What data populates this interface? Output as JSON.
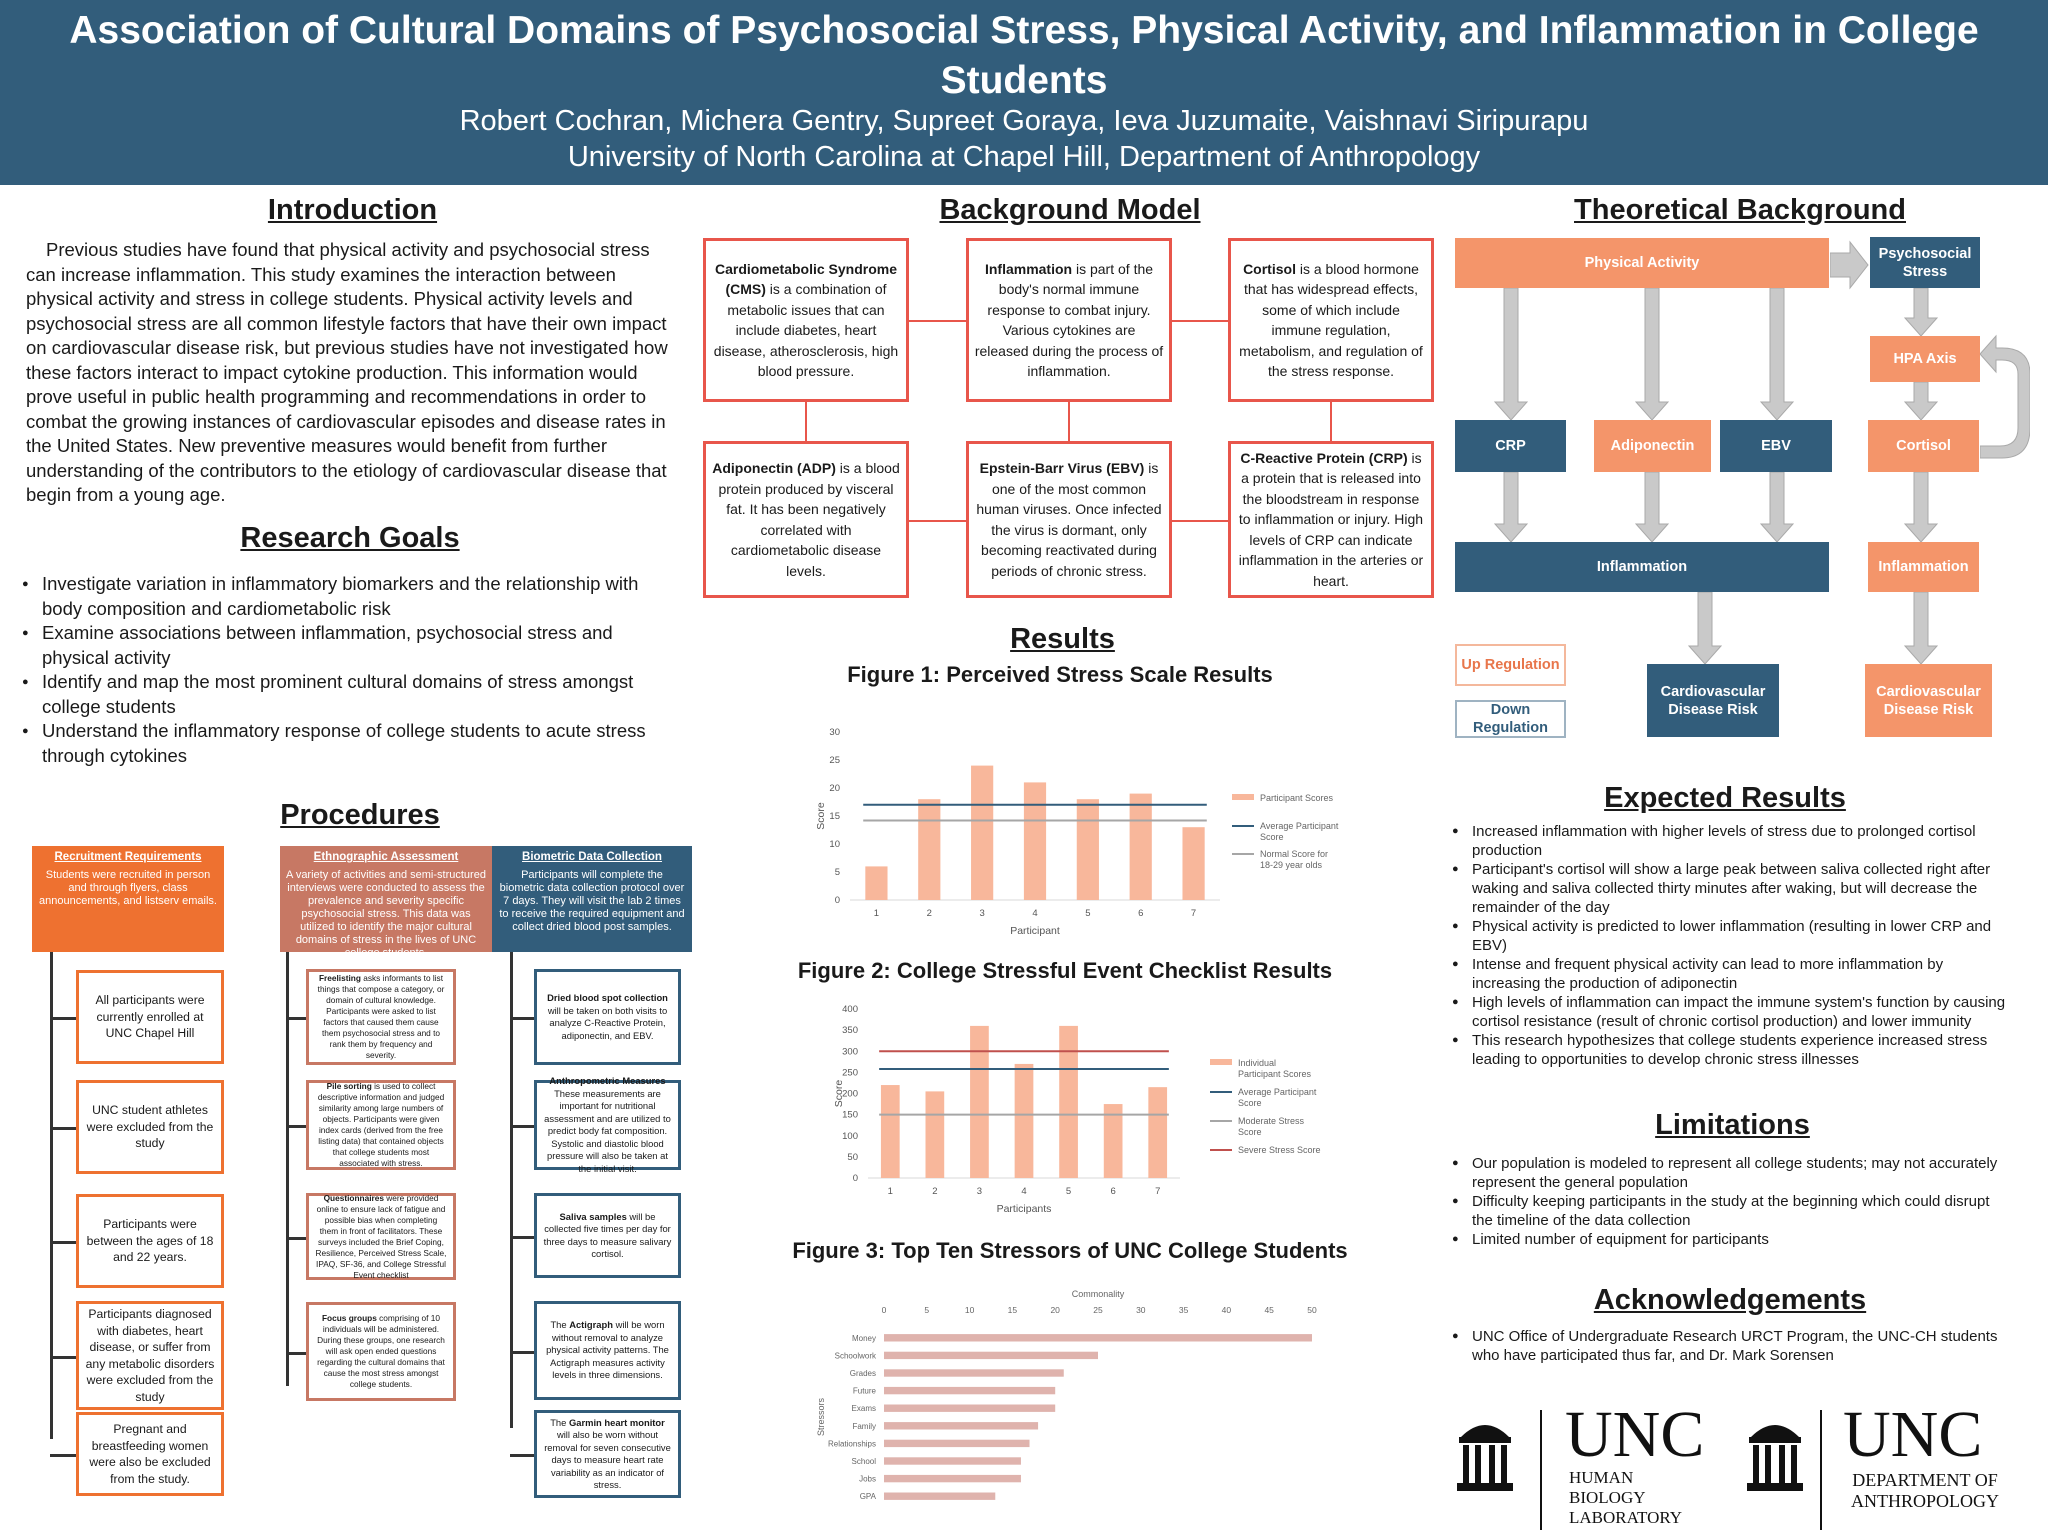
{
  "header": {
    "title": "Association of Cultural Domains of Psychosocial Stress, Physical Activity, and Inflammation in College Students",
    "authors": "Robert Cochran, Michera Gentry, Supreet Goraya, Ieva Juzumaite, Vaishnavi Siripurapu",
    "affiliation": "University of North Carolina at Chapel Hill, Department of Anthropology"
  },
  "introduction": {
    "heading": "Introduction",
    "text": "Previous studies have found that  physical activity and psychosocial stress can increase inflammation. This study examines the interaction between physical activity and stress in college students.  Physical activity levels and psychosocial stress are all common lifestyle factors that have their own impact on cardiovascular disease risk, but previous studies have not investigated how these factors interact to impact cytokine production. This information would prove useful in public health programming and recommendations in order to combat the growing instances of cardiovascular episodes and disease rates in the United States. New preventive measures would benefit from further understanding of the contributors to the etiology of cardiovascular disease that begin from a young age."
  },
  "goals": {
    "heading": "Research Goals",
    "items": [
      "Investigate variation in inflammatory biomarkers and the relationship with body composition and cardiometabolic risk",
      "Examine associations between inflammation, psychosocial stress and physical activity",
      "Identify and map the most prominent cultural domains of stress amongst college students",
      "Understand the inflammatory response of college students to acute stress through cytokines"
    ]
  },
  "procedures": {
    "heading": "Procedures",
    "col1": {
      "title": "Recruitment Requirements",
      "desc": "Students were recruited in person and through flyers, class announcements, and listserv emails.",
      "boxes": [
        "All participants were currently enrolled at UNC Chapel Hill",
        "UNC student athletes were excluded from the study",
        "Participants were between the ages of 18 and 22 years.",
        "Participants diagnosed with diabetes, heart disease, or suffer from any metabolic disorders were excluded from the study",
        "Pregnant and breastfeeding women were also be excluded from the study."
      ]
    },
    "col2": {
      "title": "Ethnographic Assessment",
      "desc": "A variety of activities and semi-structured interviews were conducted to assess the prevalence and severity specific psychosocial stress. This data was utilized to identify the major cultural domains of stress in the lives of UNC college students.",
      "boxes": [
        {
          "b": "Freelisting",
          "t": " asks informants to list things that compose a category, or domain of cultural knowledge. Participants were asked to list factors that caused them cause them psychosocial stress and to rank them by frequency and severity."
        },
        {
          "b": "Pile sorting",
          "t": " is used to collect descriptive information and judged similarity among large numbers of objects. Participants were given index cards (derived from the free listing data) that contained objects that college students most associated with stress."
        },
        {
          "b": "Questionnaires",
          "t": " were provided online to ensure lack of fatigue and possible bias when completing them in front of facilitators. These surveys included the Brief Coping, Resilience, Perceived Stress Scale, IPAQ, SF-36, and College Stressful Event checklist"
        },
        {
          "b": "Focus groups",
          "t": " comprising of 10 individuals will be administered. During these groups, one research will ask open ended questions regarding the cultural domains that cause the most stress amongst college students."
        }
      ]
    },
    "col3": {
      "title": "Biometric Data Collection",
      "desc": "Participants will complete the biometric data collection protocol over 7 days. They will visit the lab 2 times to receive the required equipment and collect dried blood post samples.",
      "boxes": [
        {
          "b": "Dried blood spot collection",
          "t": " will be taken on both visits to analyze C-Reactive Protein, adiponectin, and EBV."
        },
        {
          "b": "Anthropometric Measures",
          "t": " These measurements are important for nutritional assessment and are utilized to predict body fat composition. Systolic and diastolic blood pressure will also be taken at the initial visit."
        },
        {
          "b": "Saliva samples",
          "t": " will be collected five times per day for three days to measure salivary cortisol."
        },
        {
          "pre": "The ",
          "b": "Actigraph",
          "t": " will be worn without removal to analyze physical activity patterns. The Actigraph measures activity levels in three dimensions."
        },
        {
          "pre": "The ",
          "b": "Garmin heart monitor",
          "t": " will also be worn without removal for seven consecutive days to measure heart rate variability as an indicator of stress."
        }
      ]
    }
  },
  "background_model": {
    "heading": "Background Model",
    "boxes": [
      {
        "b": "Cardiometabolic Syndrome (CMS)",
        "t": " is a combination of metabolic issues that can include diabetes, heart disease, atherosclerosis, high blood pressure."
      },
      {
        "b": "Inflammation",
        "t": " is part of the body's normal immune response to combat injury. Various cytokines are released during the process of inflammation."
      },
      {
        "b": "Cortisol",
        "t": " is a blood hormone that has widespread effects, some of which include immune regulation, metabolism, and regulation of the stress response."
      },
      {
        "b": "Adiponectin (ADP)",
        "t": " is a blood protein produced by visceral fat. It has been negatively correlated with cardiometabolic disease levels."
      },
      {
        "b": "Epstein-Barr Virus (EBV)",
        "t": " is one of the most common human viruses. Once infected the virus is dormant, only becoming reactivated during periods of chronic stress."
      },
      {
        "b": "C-Reactive Protein (CRP)",
        "t": " is a protein that is released into the bloodstream in response to inflammation or injury. High levels of CRP can indicate inflammation in the arteries or heart."
      }
    ]
  },
  "theory": {
    "heading": "Theoretical Background",
    "physical_activity": "Physical Activity",
    "psychosocial_stress": "Psychosocial Stress",
    "hpa": "HPA Axis",
    "crp": "CRP",
    "adiponectin": "Adiponectin",
    "ebv": "EBV",
    "cortisol": "Cortisol",
    "inflammation_left": "Inflammation",
    "inflammation_right": "Inflammation",
    "cvd_left": "Cardiovascular Disease Risk",
    "cvd_right": "Cardiovascular Disease Risk",
    "legend_up": "Up Regulation",
    "legend_down": "Down Regulation",
    "colors": {
      "up": "#f4956a",
      "down": "#325d7b"
    }
  },
  "results": {
    "heading": "Results",
    "fig1_title": "Figure 1: Perceived Stress Scale Results",
    "fig2_title": "Figure 2: College Stressful Event Checklist Results",
    "fig3_title": "Figure 3: Top Ten Stressors of UNC College Students"
  },
  "chart_data": [
    {
      "type": "bar",
      "title": "Figure 1: Perceived Stress Scale Results",
      "xlabel": "Participant",
      "ylabel": "Score",
      "categories": [
        "1",
        "2",
        "3",
        "4",
        "5",
        "6",
        "7"
      ],
      "series": [
        {
          "name": "Participant Scores",
          "values": [
            6,
            18,
            24,
            21,
            18,
            19,
            13
          ]
        }
      ],
      "reference_lines": [
        {
          "name": "Average Participant Score",
          "value": 17
        },
        {
          "name": "Normal Score for 18-29 year olds",
          "value": 14.2
        }
      ],
      "ylim": [
        0,
        30
      ],
      "yticks": [
        0,
        5,
        10,
        15,
        20,
        25,
        30
      ],
      "legend": "right",
      "colors": {
        "bar": "#f8b79b",
        "avg": "#325d7b",
        "normal": "#a6a6a6"
      }
    },
    {
      "type": "bar",
      "title": "Figure 2: College Stressful Event Checklist Results",
      "xlabel": "Participants",
      "ylabel": "Score",
      "categories": [
        "1",
        "2",
        "3",
        "4",
        "5",
        "6",
        "7"
      ],
      "series": [
        {
          "name": "Individual Participant Scores",
          "values": [
            220,
            205,
            360,
            270,
            360,
            175,
            215
          ]
        }
      ],
      "reference_lines": [
        {
          "name": "Average Participant Score",
          "value": 258
        },
        {
          "name": "Moderate Stress Score",
          "value": 150
        },
        {
          "name": "Severe Stress Score",
          "value": 300
        }
      ],
      "ylim": [
        0,
        400
      ],
      "yticks": [
        0,
        50,
        100,
        150,
        200,
        250,
        300,
        350,
        400
      ],
      "legend": "right",
      "colors": {
        "bar": "#f8b79b",
        "avg": "#325d7b",
        "moderate": "#a6a6a6",
        "severe": "#c0504d"
      }
    },
    {
      "type": "bar",
      "orientation": "horizontal",
      "title": "Figure 3: Top Ten Stressors of UNC College Students",
      "xlabel": "Commonality",
      "ylabel": "Stressors",
      "categories": [
        "Money",
        "Schoolwork",
        "Grades",
        "Future",
        "Exams",
        "Family",
        "Relationships",
        "School",
        "Jobs",
        "GPA"
      ],
      "values": [
        50,
        25,
        21,
        20,
        20,
        18,
        17,
        16,
        16,
        13
      ],
      "xlim": [
        0,
        50
      ],
      "xticks": [
        0,
        5,
        10,
        15,
        20,
        25,
        30,
        35,
        40,
        45,
        50
      ],
      "colors": {
        "bar": "#dfb3ad"
      }
    }
  ],
  "expected": {
    "heading": "Expected Results",
    "items": [
      "Increased inflammation with higher levels of stress due to prolonged cortisol production",
      "Participant's cortisol will show a large peak between saliva collected right after waking and saliva collected thirty minutes after waking, but will decrease the remainder of the day",
      "Physical activity is predicted to lower inflammation (resulting in lower CRP and EBV)",
      "Intense and frequent physical activity can lead to more inflammation by increasing the production of adiponectin",
      "High levels of inflammation can impact the immune system's function by causing cortisol resistance (result of chronic cortisol production) and lower immunity",
      "This research hypothesizes that college students experience increased stress leading to opportunities to develop chronic stress illnesses"
    ]
  },
  "limitations": {
    "heading": "Limitations",
    "items": [
      "Our population is modeled to represent all college students; may not accurately represent the general population",
      "Difficulty keeping participants in the study at the beginning which could disrupt the timeline of the data collection",
      "Limited number of equipment for participants"
    ]
  },
  "acknowledgements": {
    "heading": "Acknowledgements",
    "items": [
      "UNC Office of Undergraduate Research URCT Program, the UNC-CH students who have participated thus far, and Dr. Mark Sorensen"
    ]
  },
  "logos": {
    "logo1_main": "UNC",
    "logo1_sub": [
      "HUMAN",
      "BIOLOGY",
      "LABORATORY"
    ],
    "logo2_main": "UNC",
    "logo2_sub": [
      "DEPARTMENT OF",
      "ANTHROPOLOGY"
    ]
  }
}
